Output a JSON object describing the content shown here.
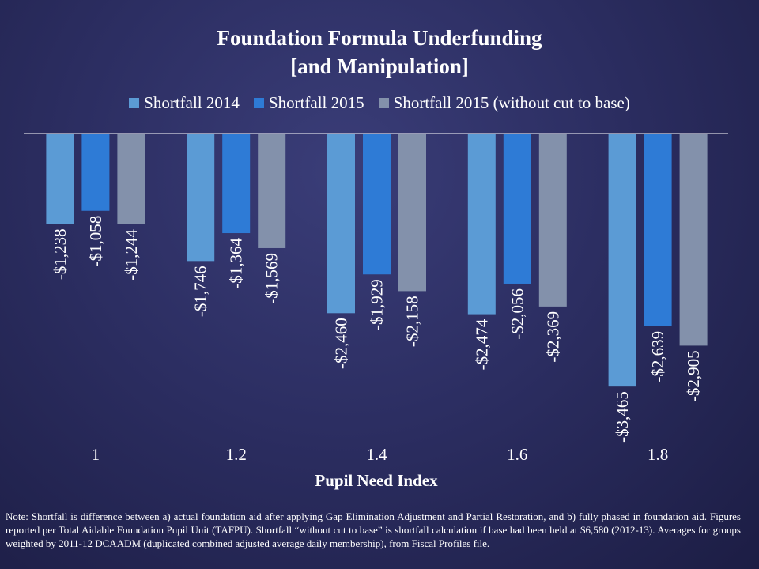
{
  "chart_data": {
    "type": "bar",
    "title_line1": "Foundation Formula Underfunding",
    "title_line2": "[and Manipulation]",
    "xlabel": "Pupil Need Index",
    "ylabel": "",
    "categories": [
      "1",
      "1.2",
      "1.4",
      "1.6",
      "1.8"
    ],
    "series": [
      {
        "name": "Shortfall 2014",
        "color": "#5b9bd5",
        "values": [
          -1238,
          -1746,
          -2460,
          -2474,
          -3465
        ],
        "labels": [
          "-$1,238",
          "-$1,746",
          "-$2,460",
          "-$2,474",
          "-$3,465"
        ]
      },
      {
        "name": "Shortfall 2015",
        "color": "#2e7bd6",
        "values": [
          -1058,
          -1364,
          -1929,
          -2056,
          -2639
        ],
        "labels": [
          "-$1,058",
          "-$1,364",
          "-$1,929",
          "-$2,056",
          "-$2,639"
        ]
      },
      {
        "name": "Shortfall 2015 (without cut to base)",
        "color": "#8391ab",
        "values": [
          -1244,
          -1569,
          -2158,
          -2369,
          -2905
        ],
        "labels": [
          "-$1,244",
          "-$1,569",
          "-$2,158",
          "-$2,369",
          "-$2,905"
        ]
      }
    ],
    "ylim": [
      -3500,
      0
    ],
    "legend_position": "top"
  },
  "note": "Note: Shortfall is difference between a) actual foundation aid after applying Gap Elimination Adjustment and Partial Restoration, and b) fully phased in foundation aid. Figures reported per Total Aidable Foundation Pupil Unit (TAFPU). Shortfall “without cut to base” is shortfall calculation if base had been held at $6,580 (2012-13). Averages for groups weighted by 2011-12 DCAADM (duplicated combined adjusted average daily membership), from Fiscal Profiles file."
}
